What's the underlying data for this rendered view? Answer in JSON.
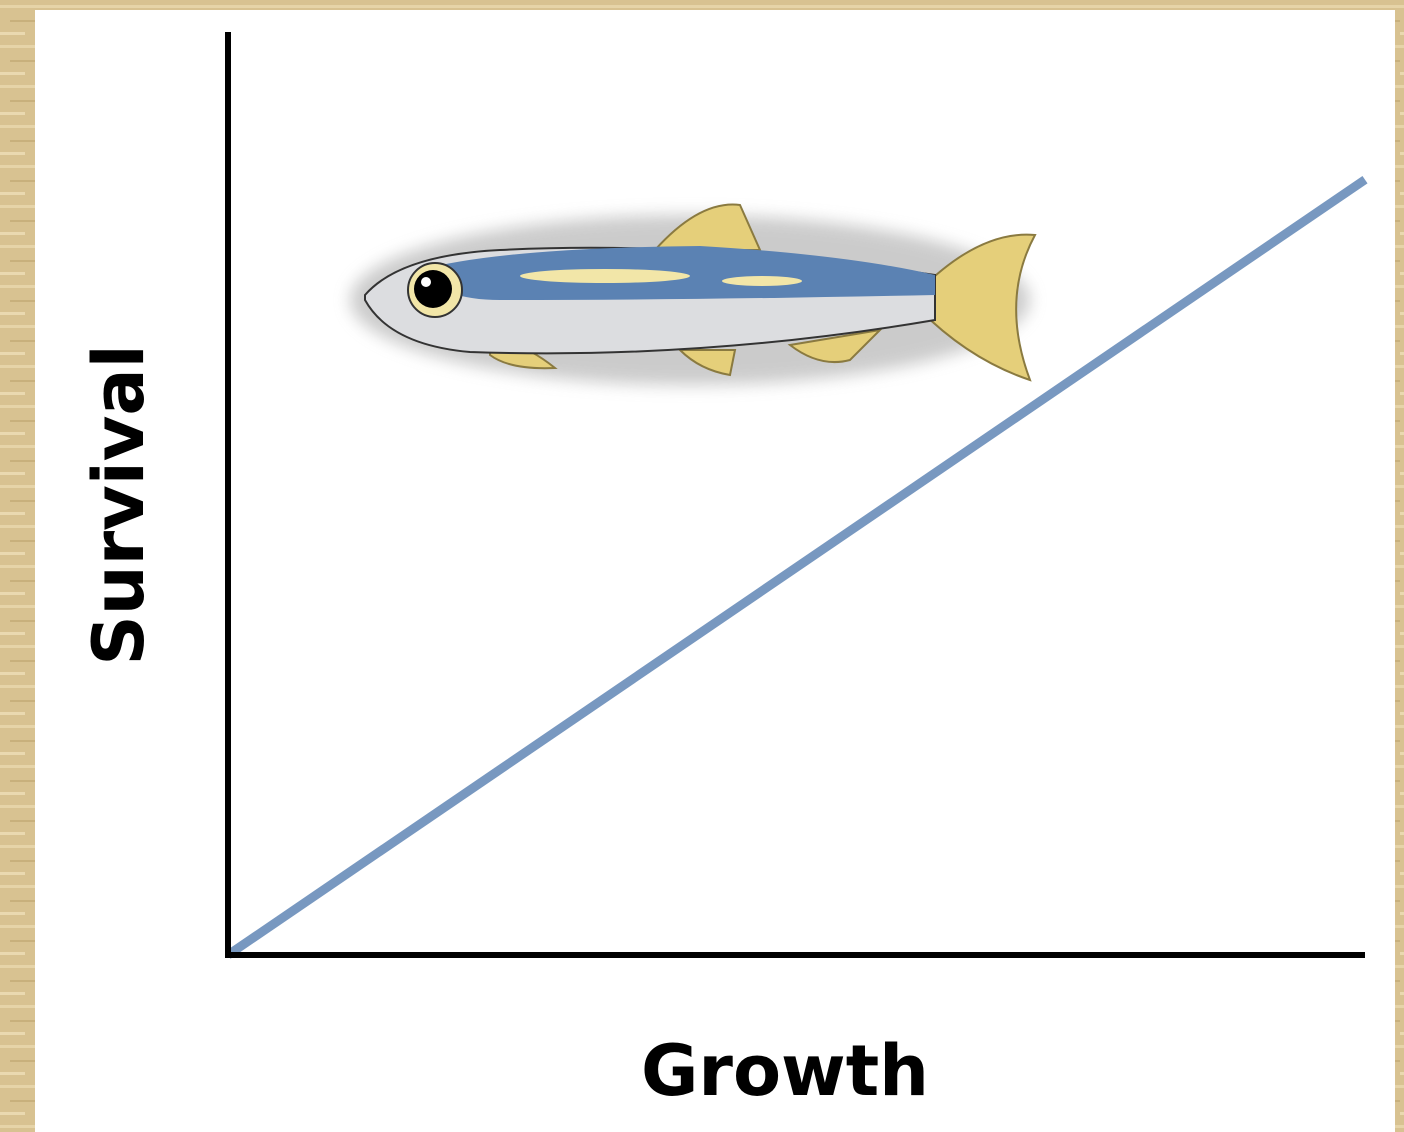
{
  "chart_data": {
    "type": "line",
    "x_label": "Growth",
    "y_label": "Survival",
    "x": [
      0,
      1
    ],
    "series": [
      {
        "color": "#7898c0",
        "values": [
          0,
          0.84
        ]
      }
    ],
    "xlim": [
      0,
      1
    ],
    "ylim": [
      0,
      1
    ]
  }
}
